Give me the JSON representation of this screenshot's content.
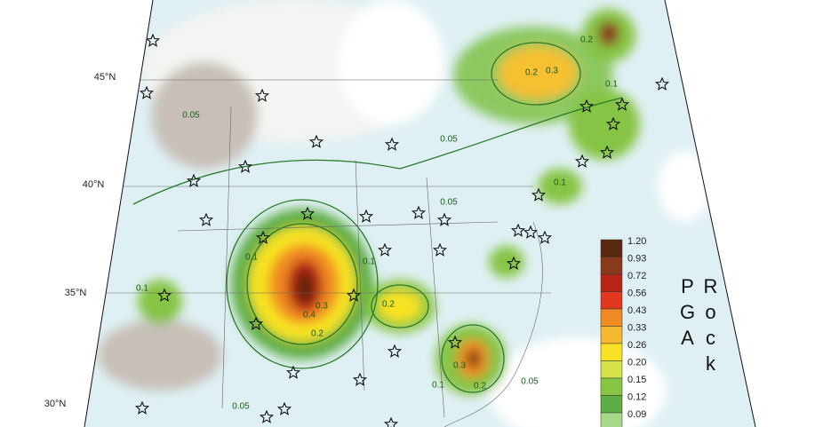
{
  "map": {
    "lat_labels": [
      "45°N",
      "40°N",
      "35°N",
      "30°N"
    ],
    "contour_labels": [
      "0.05",
      "0.05",
      "0.05",
      "0.1",
      "0.1",
      "0.2",
      "0.2",
      "0.3",
      "0.4",
      "0.1",
      "0.2",
      "0.3",
      "0.2",
      "0.1",
      "0.1",
      "0.1",
      "0.2",
      "0.3",
      "0.05",
      "0.05"
    ]
  },
  "legend": {
    "title": "Rock PGA",
    "levels": [
      {
        "label": "1.20",
        "color": "#5a2810"
      },
      {
        "label": "0.93",
        "color": "#8a3a1c"
      },
      {
        "label": "0.72",
        "color": "#b52414"
      },
      {
        "label": "0.56",
        "color": "#e2371f"
      },
      {
        "label": "0.43",
        "color": "#f08a22"
      },
      {
        "label": "0.33",
        "color": "#f5b730"
      },
      {
        "label": "0.26",
        "color": "#f7e324"
      },
      {
        "label": "0.20",
        "color": "#d4e34a"
      },
      {
        "label": "0.15",
        "color": "#86c444"
      },
      {
        "label": "0.12",
        "color": "#5fae45"
      },
      {
        "label": "0.09",
        "color": "#a8d88a"
      }
    ]
  }
}
